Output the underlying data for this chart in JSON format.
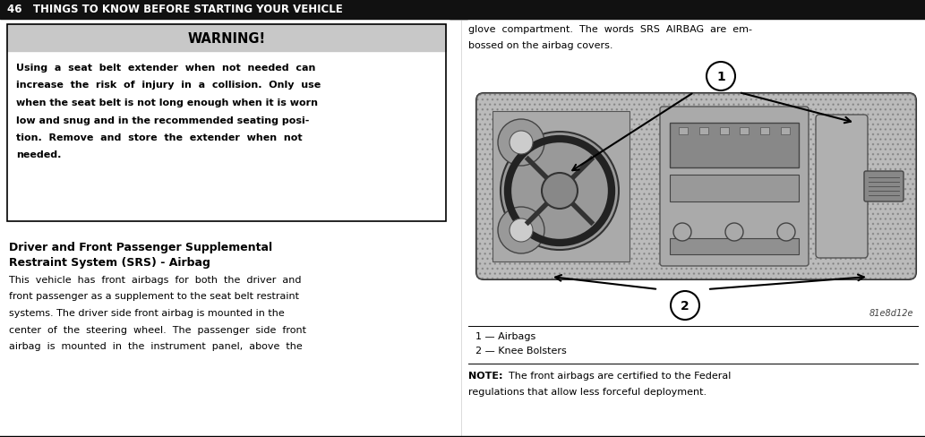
{
  "bg_color": "#ffffff",
  "header_bg": "#111111",
  "header_text": "46   THINGS TO KNOW BEFORE STARTING YOUR VEHICLE",
  "header_text_color": "#ffffff",
  "header_fontsize": 8.5,
  "warning_box_header": "WARNING!",
  "warning_box_header_bg": "#c8c8c8",
  "warning_body_line1": "Using  a  seat  belt  extender  when  not  needed  can",
  "warning_body_line2": "increase  the  risk  of  injury  in  a  collision.  Only  use",
  "warning_body_line3": "when the seat belt is not long enough when it is worn",
  "warning_body_line4": "low and snug and in the recommended seating posi-",
  "warning_body_line5": "tion.  Remove  and  store  the  extender  when  not",
  "warning_body_line6": "needed.",
  "section_heading_line1": "Driver and Front Passenger Supplemental",
  "section_heading_line2": "Restraint System (SRS) - Airbag",
  "body_left_line1": "This  vehicle  has  front  airbags  for  both  the  driver  and",
  "body_left_line2": "front passenger as a supplement to the seat belt restraint",
  "body_left_line3": "systems. The driver side front airbag is mounted in the",
  "body_left_line4": "center  of  the  steering  wheel.  The  passenger  side  front",
  "body_left_line5": "airbag  is  mounted  in  the  instrument  panel,  above  the",
  "body_right_line1": "glove  compartment.  The  words  SRS  AIRBAG  are  em-",
  "body_right_line2": "bossed on the airbag covers.",
  "caption1": "1 — Airbags",
  "caption2": "2 — Knee Bolsters",
  "image_label": "81e8d12e",
  "note_bold": "NOTE:",
  "note_text": "  The front airbags are certified to the Federal",
  "note_line2": "regulations that allow less forceful deployment.",
  "divider_color": "#000000",
  "text_color": "#000000",
  "body_fontsize": 8.0,
  "heading_fontsize": 9.0,
  "warning_header_fontsize": 10.5
}
